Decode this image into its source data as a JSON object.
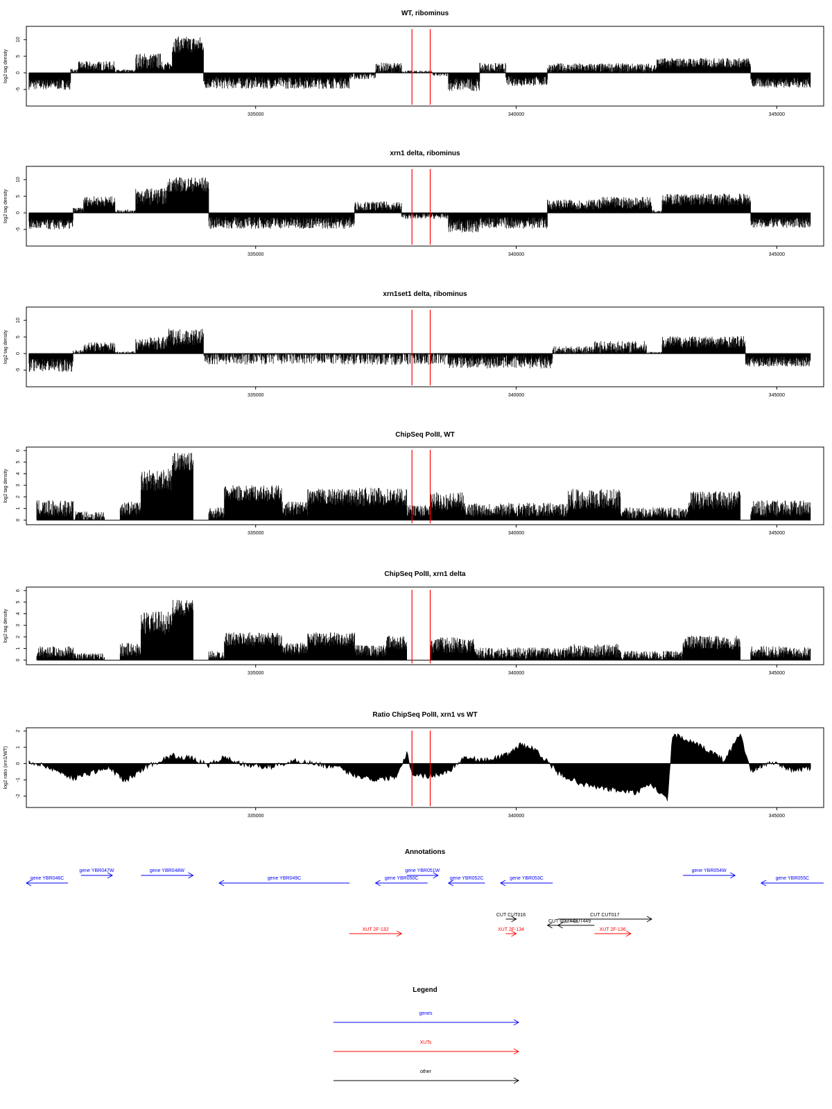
{
  "chart_data": [
    {
      "type": "bar",
      "title": "WT, ribominus",
      "ylabel": "log2 tag density",
      "xlabel": "",
      "xlim": [
        330600,
        345900
      ],
      "ylim": [
        -10,
        14
      ],
      "yticks": [
        -5,
        0,
        5,
        10
      ],
      "xticks": [
        335000,
        340000,
        345000
      ],
      "markers": [
        338000,
        338350
      ],
      "marker_color": "#ff0000",
      "bar_color": "#000000",
      "segments": [
        {
          "x0": 330650,
          "x1": 331450,
          "mean": -3.5,
          "noise": 1.6
        },
        {
          "x0": 331450,
          "x1": 331600,
          "mean": 0.6,
          "noise": 0.6
        },
        {
          "x0": 331600,
          "x1": 332300,
          "mean": 2.0,
          "noise": 1.5
        },
        {
          "x0": 332300,
          "x1": 332700,
          "mean": 0.5,
          "noise": 0.5
        },
        {
          "x0": 332700,
          "x1": 333200,
          "mean": 3.5,
          "noise": 2.5
        },
        {
          "x0": 333200,
          "x1": 333400,
          "mean": 2.0,
          "noise": 1.2
        },
        {
          "x0": 333400,
          "x1": 334000,
          "mean": 8.5,
          "noise": 2.5
        },
        {
          "x0": 334000,
          "x1": 336800,
          "mean": -3.0,
          "noise": 1.8
        },
        {
          "x0": 336800,
          "x1": 337300,
          "mean": -1.0,
          "noise": 1.0
        },
        {
          "x0": 337300,
          "x1": 337800,
          "mean": 1.5,
          "noise": 1.6
        },
        {
          "x0": 337800,
          "x1": 338400,
          "mean": 0.3,
          "noise": 0.4
        },
        {
          "x0": 338400,
          "x1": 338700,
          "mean": -0.5,
          "noise": 0.6
        },
        {
          "x0": 338700,
          "x1": 339300,
          "mean": -3.5,
          "noise": 2.0
        },
        {
          "x0": 339300,
          "x1": 339800,
          "mean": 1.5,
          "noise": 1.5
        },
        {
          "x0": 339800,
          "x1": 340600,
          "mean": -2.5,
          "noise": 1.5
        },
        {
          "x0": 340600,
          "x1": 342700,
          "mean": 1.5,
          "noise": 1.4
        },
        {
          "x0": 342700,
          "x1": 344500,
          "mean": 3.0,
          "noise": 1.5
        },
        {
          "x0": 344500,
          "x1": 345650,
          "mean": -3.0,
          "noise": 1.5
        }
      ]
    },
    {
      "type": "bar",
      "title": "xrn1 delta, ribominus",
      "ylabel": "log2 tag density",
      "xlabel": "",
      "xlim": [
        330600,
        345900
      ],
      "ylim": [
        -10,
        14
      ],
      "yticks": [
        -5,
        0,
        5,
        10
      ],
      "xticks": [
        335000,
        340000,
        345000
      ],
      "markers": [
        338000,
        338350
      ],
      "marker_color": "#ff0000",
      "bar_color": "#000000",
      "segments": [
        {
          "x0": 330650,
          "x1": 331500,
          "mean": -3.5,
          "noise": 1.6
        },
        {
          "x0": 331500,
          "x1": 331700,
          "mean": 0.8,
          "noise": 0.8
        },
        {
          "x0": 331700,
          "x1": 332300,
          "mean": 3.5,
          "noise": 1.5
        },
        {
          "x0": 332300,
          "x1": 332700,
          "mean": 0.5,
          "noise": 0.5
        },
        {
          "x0": 332700,
          "x1": 333300,
          "mean": 5.0,
          "noise": 2.5
        },
        {
          "x0": 333300,
          "x1": 334100,
          "mean": 8.5,
          "noise": 2.3
        },
        {
          "x0": 334100,
          "x1": 336900,
          "mean": -3.0,
          "noise": 1.8
        },
        {
          "x0": 336900,
          "x1": 337800,
          "mean": 2.0,
          "noise": 1.4
        },
        {
          "x0": 337800,
          "x1": 338700,
          "mean": -1.0,
          "noise": 0.8
        },
        {
          "x0": 338700,
          "x1": 339300,
          "mean": -4.0,
          "noise": 2.0
        },
        {
          "x0": 339300,
          "x1": 340600,
          "mean": -3.0,
          "noise": 1.8
        },
        {
          "x0": 340600,
          "x1": 341600,
          "mean": 2.5,
          "noise": 1.5
        },
        {
          "x0": 341600,
          "x1": 342600,
          "mean": 3.0,
          "noise": 1.8
        },
        {
          "x0": 342600,
          "x1": 342800,
          "mean": 0.5,
          "noise": 0.5
        },
        {
          "x0": 342800,
          "x1": 344500,
          "mean": 4.0,
          "noise": 1.8
        },
        {
          "x0": 344500,
          "x1": 345650,
          "mean": -3.0,
          "noise": 1.5
        }
      ]
    },
    {
      "type": "bar",
      "title": "xrn1set1 delta, ribominus",
      "ylabel": "log2 tag density",
      "xlabel": "",
      "xlim": [
        330600,
        345900
      ],
      "ylim": [
        -10,
        14
      ],
      "yticks": [
        -5,
        0,
        5,
        10
      ],
      "xticks": [
        335000,
        340000,
        345000
      ],
      "markers": [
        338000,
        338350
      ],
      "marker_color": "#ff0000",
      "bar_color": "#000000",
      "segments": [
        {
          "x0": 330650,
          "x1": 331500,
          "mean": -3.5,
          "noise": 2.0
        },
        {
          "x0": 331500,
          "x1": 331700,
          "mean": 0.5,
          "noise": 0.6
        },
        {
          "x0": 331700,
          "x1": 332300,
          "mean": 2.0,
          "noise": 1.5
        },
        {
          "x0": 332300,
          "x1": 332700,
          "mean": 0.3,
          "noise": 0.4
        },
        {
          "x0": 332700,
          "x1": 333300,
          "mean": 3.0,
          "noise": 2.0
        },
        {
          "x0": 333300,
          "x1": 334000,
          "mean": 5.0,
          "noise": 2.5
        },
        {
          "x0": 334000,
          "x1": 338700,
          "mean": -1.0,
          "noise": 2.4
        },
        {
          "x0": 338700,
          "x1": 340700,
          "mean": -2.5,
          "noise": 2.0
        },
        {
          "x0": 340700,
          "x1": 341500,
          "mean": 1.0,
          "noise": 1.2
        },
        {
          "x0": 341500,
          "x1": 342500,
          "mean": 2.0,
          "noise": 1.8
        },
        {
          "x0": 342500,
          "x1": 342800,
          "mean": 0.3,
          "noise": 0.3
        },
        {
          "x0": 342800,
          "x1": 344400,
          "mean": 3.5,
          "noise": 1.8
        },
        {
          "x0": 344400,
          "x1": 345650,
          "mean": -2.5,
          "noise": 1.5
        }
      ]
    },
    {
      "type": "bar",
      "title": "ChipSeq PolII, WT",
      "ylabel": "log2 tag density",
      "xlabel": "",
      "xlim": [
        330600,
        345900
      ],
      "ylim": [
        -0.4,
        6.3
      ],
      "yticks": [
        0,
        1,
        2,
        3,
        4,
        5,
        6
      ],
      "xticks": [
        335000,
        340000,
        345000
      ],
      "markers": [
        338000,
        338350
      ],
      "marker_color": "#ff0000",
      "bar_color": "#000000",
      "segments": [
        {
          "x0": 330800,
          "x1": 331500,
          "mean": 1.0,
          "noise": 0.7
        },
        {
          "x0": 331500,
          "x1": 332100,
          "mean": 0.3,
          "noise": 0.5
        },
        {
          "x0": 332400,
          "x1": 332800,
          "mean": 1.0,
          "noise": 0.6
        },
        {
          "x0": 332800,
          "x1": 333400,
          "mean": 3.5,
          "noise": 1.0
        },
        {
          "x0": 333400,
          "x1": 333800,
          "mean": 5.0,
          "noise": 0.8
        },
        {
          "x0": 334100,
          "x1": 334400,
          "mean": 0.6,
          "noise": 0.5
        },
        {
          "x0": 334400,
          "x1": 335500,
          "mean": 2.3,
          "noise": 0.7
        },
        {
          "x0": 335500,
          "x1": 336000,
          "mean": 1.0,
          "noise": 0.6
        },
        {
          "x0": 336000,
          "x1": 336900,
          "mean": 2.0,
          "noise": 0.7
        },
        {
          "x0": 336900,
          "x1": 337900,
          "mean": 2.0,
          "noise": 0.8
        },
        {
          "x0": 337900,
          "x1": 338350,
          "mean": 0.8,
          "noise": 0.5
        },
        {
          "x0": 338350,
          "x1": 339000,
          "mean": 1.6,
          "noise": 0.8
        },
        {
          "x0": 339000,
          "x1": 341000,
          "mean": 0.9,
          "noise": 0.6
        },
        {
          "x0": 341000,
          "x1": 342000,
          "mean": 1.8,
          "noise": 0.9
        },
        {
          "x0": 342000,
          "x1": 343300,
          "mean": 0.6,
          "noise": 0.5
        },
        {
          "x0": 343300,
          "x1": 344300,
          "mean": 1.7,
          "noise": 0.8
        },
        {
          "x0": 344500,
          "x1": 345650,
          "mean": 1.0,
          "noise": 0.7
        }
      ]
    },
    {
      "type": "bar",
      "title": "ChipSeq PolII, xrn1 delta",
      "ylabel": "log2 tag density",
      "xlabel": "",
      "xlim": [
        330600,
        345900
      ],
      "ylim": [
        -0.4,
        6.3
      ],
      "yticks": [
        0,
        1,
        2,
        3,
        4,
        5,
        6
      ],
      "xticks": [
        335000,
        340000,
        345000
      ],
      "markers": [
        338000,
        338350
      ],
      "marker_color": "#ff0000",
      "bar_color": "#000000",
      "segments": [
        {
          "x0": 330800,
          "x1": 331500,
          "mean": 0.7,
          "noise": 0.5
        },
        {
          "x0": 331500,
          "x1": 332100,
          "mean": 0.3,
          "noise": 0.3
        },
        {
          "x0": 332400,
          "x1": 332800,
          "mean": 0.9,
          "noise": 0.6
        },
        {
          "x0": 332800,
          "x1": 333400,
          "mean": 3.2,
          "noise": 1.0
        },
        {
          "x0": 333400,
          "x1": 333800,
          "mean": 4.5,
          "noise": 0.7
        },
        {
          "x0": 334100,
          "x1": 334400,
          "mean": 0.4,
          "noise": 0.4
        },
        {
          "x0": 334400,
          "x1": 335500,
          "mean": 1.8,
          "noise": 0.6
        },
        {
          "x0": 335500,
          "x1": 336000,
          "mean": 1.0,
          "noise": 0.5
        },
        {
          "x0": 336000,
          "x1": 336900,
          "mean": 1.8,
          "noise": 0.6
        },
        {
          "x0": 336900,
          "x1": 337500,
          "mean": 0.8,
          "noise": 0.5
        },
        {
          "x0": 337500,
          "x1": 337900,
          "mean": 1.5,
          "noise": 0.6
        },
        {
          "x0": 338350,
          "x1": 339200,
          "mean": 1.3,
          "noise": 0.7
        },
        {
          "x0": 339200,
          "x1": 341000,
          "mean": 0.6,
          "noise": 0.5
        },
        {
          "x0": 341000,
          "x1": 342000,
          "mean": 0.8,
          "noise": 0.6
        },
        {
          "x0": 342000,
          "x1": 343200,
          "mean": 0.4,
          "noise": 0.4
        },
        {
          "x0": 343200,
          "x1": 344300,
          "mean": 1.5,
          "noise": 0.6
        },
        {
          "x0": 344500,
          "x1": 345650,
          "mean": 0.7,
          "noise": 0.5
        }
      ]
    },
    {
      "type": "area",
      "title": "Ratio ChipSeq PolII, xrn1 vs WT",
      "ylabel": "log2 ratio (xrn1/WT)",
      "xlabel": "",
      "xlim": [
        330600,
        345900
      ],
      "ylim": [
        -2.7,
        2.2
      ],
      "yticks": [
        -2,
        -1,
        0,
        1,
        2
      ],
      "xticks": [
        335000,
        340000,
        345000
      ],
      "markers": [
        338000,
        338350
      ],
      "marker_color": "#ff0000",
      "fill_color": "#000000",
      "x": [
        330650,
        331000,
        331500,
        331900,
        332200,
        332500,
        332900,
        333400,
        333800,
        334100,
        334400,
        334800,
        335300,
        335800,
        336300,
        336600,
        336900,
        337300,
        337700,
        337900,
        338000,
        338300,
        338700,
        339000,
        339400,
        339800,
        340100,
        340400,
        340800,
        341300,
        341800,
        342300,
        342600,
        342900,
        343000,
        343300,
        343700,
        344000,
        344300,
        344500,
        344900,
        345300,
        345650
      ],
      "y": [
        0.1,
        -0.2,
        -0.9,
        -0.5,
        -0.3,
        -1.1,
        -0.2,
        0.5,
        0.3,
        -0.1,
        0.4,
        -0.1,
        -0.2,
        0.2,
        -0.1,
        -0.3,
        -0.7,
        -1.0,
        -0.8,
        0.7,
        -0.6,
        -0.8,
        -0.5,
        0.4,
        0.2,
        0.5,
        1.2,
        0.8,
        -0.6,
        -1.3,
        -1.6,
        -1.8,
        -1.3,
        -2.3,
        1.8,
        1.4,
        0.8,
        0.2,
        1.9,
        -0.5,
        0.1,
        -0.4,
        -0.3
      ]
    }
  ],
  "annotations": {
    "title": "Annotations",
    "genes": [
      {
        "label": "gene YBR046C",
        "start": 331400,
        "end": 330600,
        "dir": "left",
        "row": "lower"
      },
      {
        "label": "gene YBR047W",
        "start": 331650,
        "end": 332250,
        "dir": "right",
        "row": "upper"
      },
      {
        "label": "gene YBR048W",
        "start": 332800,
        "end": 333800,
        "dir": "right",
        "row": "upper"
      },
      {
        "label": "gene YBR049C",
        "start": 336800,
        "end": 334300,
        "dir": "left",
        "row": "lower"
      },
      {
        "label": "gene YBR050C",
        "start": 338300,
        "end": 337300,
        "dir": "left",
        "row": "lower"
      },
      {
        "label": "gene YBR051W",
        "start": 337900,
        "end": 338500,
        "dir": "right",
        "row": "upper"
      },
      {
        "label": "gene YBR052C",
        "start": 339400,
        "end": 338700,
        "dir": "left",
        "row": "lower"
      },
      {
        "label": "gene YBR053C",
        "start": 340700,
        "end": 339700,
        "dir": "left",
        "row": "lower"
      },
      {
        "label": "gene YBR054W",
        "start": 343200,
        "end": 344200,
        "dir": "right",
        "row": "upper"
      },
      {
        "label": "gene YBR055C",
        "start": 345900,
        "end": 344700,
        "dir": "left",
        "row": "lower"
      }
    ],
    "others": [
      {
        "label": "CUT CUT016",
        "start": 339800,
        "end": 340000,
        "dir": "right",
        "row": 0
      },
      {
        "label": "CUT CUT017",
        "start": 340800,
        "end": 342600,
        "dir": "right",
        "row": 0
      },
      {
        "label": "CUT CUT449",
        "start": 341500,
        "end": 340800,
        "dir": "left",
        "row": 1
      },
      {
        "label": "CUT CUT448",
        "start": 341200,
        "end": 340600,
        "dir": "left",
        "row": 2
      }
    ],
    "xuts": [
      {
        "label": "XUT 2F-132",
        "start": 336800,
        "end": 337800,
        "dir": "right"
      },
      {
        "label": "XUT 2F-134",
        "start": 339800,
        "end": 340000,
        "dir": "right"
      },
      {
        "label": "XUT 2F-136",
        "start": 341500,
        "end": 342200,
        "dir": "right"
      }
    ]
  },
  "legend": {
    "title": "Legend",
    "items": [
      {
        "label": "genes",
        "color": "#0000ff"
      },
      {
        "label": "XUTs",
        "color": "#ff0000"
      },
      {
        "label": "other",
        "color": "#000000"
      }
    ]
  },
  "colors": {
    "gene": "#0000ff",
    "xut": "#ff0000",
    "other": "#000000",
    "marker": "#ff0000"
  }
}
